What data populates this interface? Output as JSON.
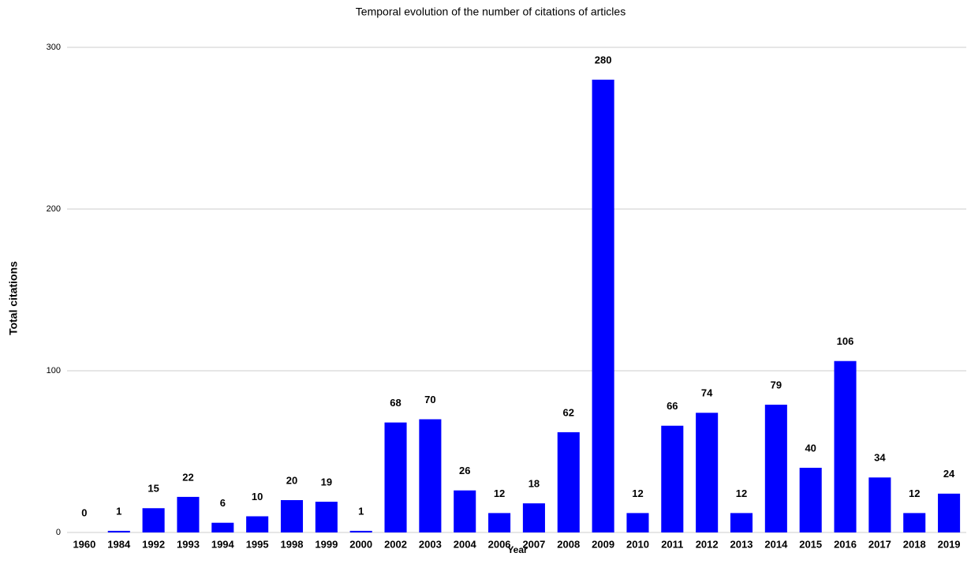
{
  "chart_data": {
    "type": "bar",
    "title": "Temporal evolution of the number of citations of articles",
    "x_label": "Year",
    "y_label": "Total citations",
    "categories": [
      "1960",
      "1984",
      "1992",
      "1993",
      "1994",
      "1995",
      "1998",
      "1999",
      "2000",
      "2002",
      "2003",
      "2004",
      "2006",
      "2007",
      "2008",
      "2009",
      "2010",
      "2011",
      "2012",
      "2013",
      "2014",
      "2015",
      "2016",
      "2017",
      "2018",
      "2019"
    ],
    "values": [
      0,
      1,
      15,
      22,
      6,
      10,
      20,
      19,
      1,
      68,
      70,
      26,
      12,
      18,
      62,
      280,
      12,
      66,
      74,
      12,
      79,
      40,
      106,
      34,
      12,
      24
    ],
    "color": "#0000ff",
    "ylim": [
      0,
      300
    ],
    "yticks": [
      0,
      100,
      200,
      300
    ],
    "grid": true
  }
}
